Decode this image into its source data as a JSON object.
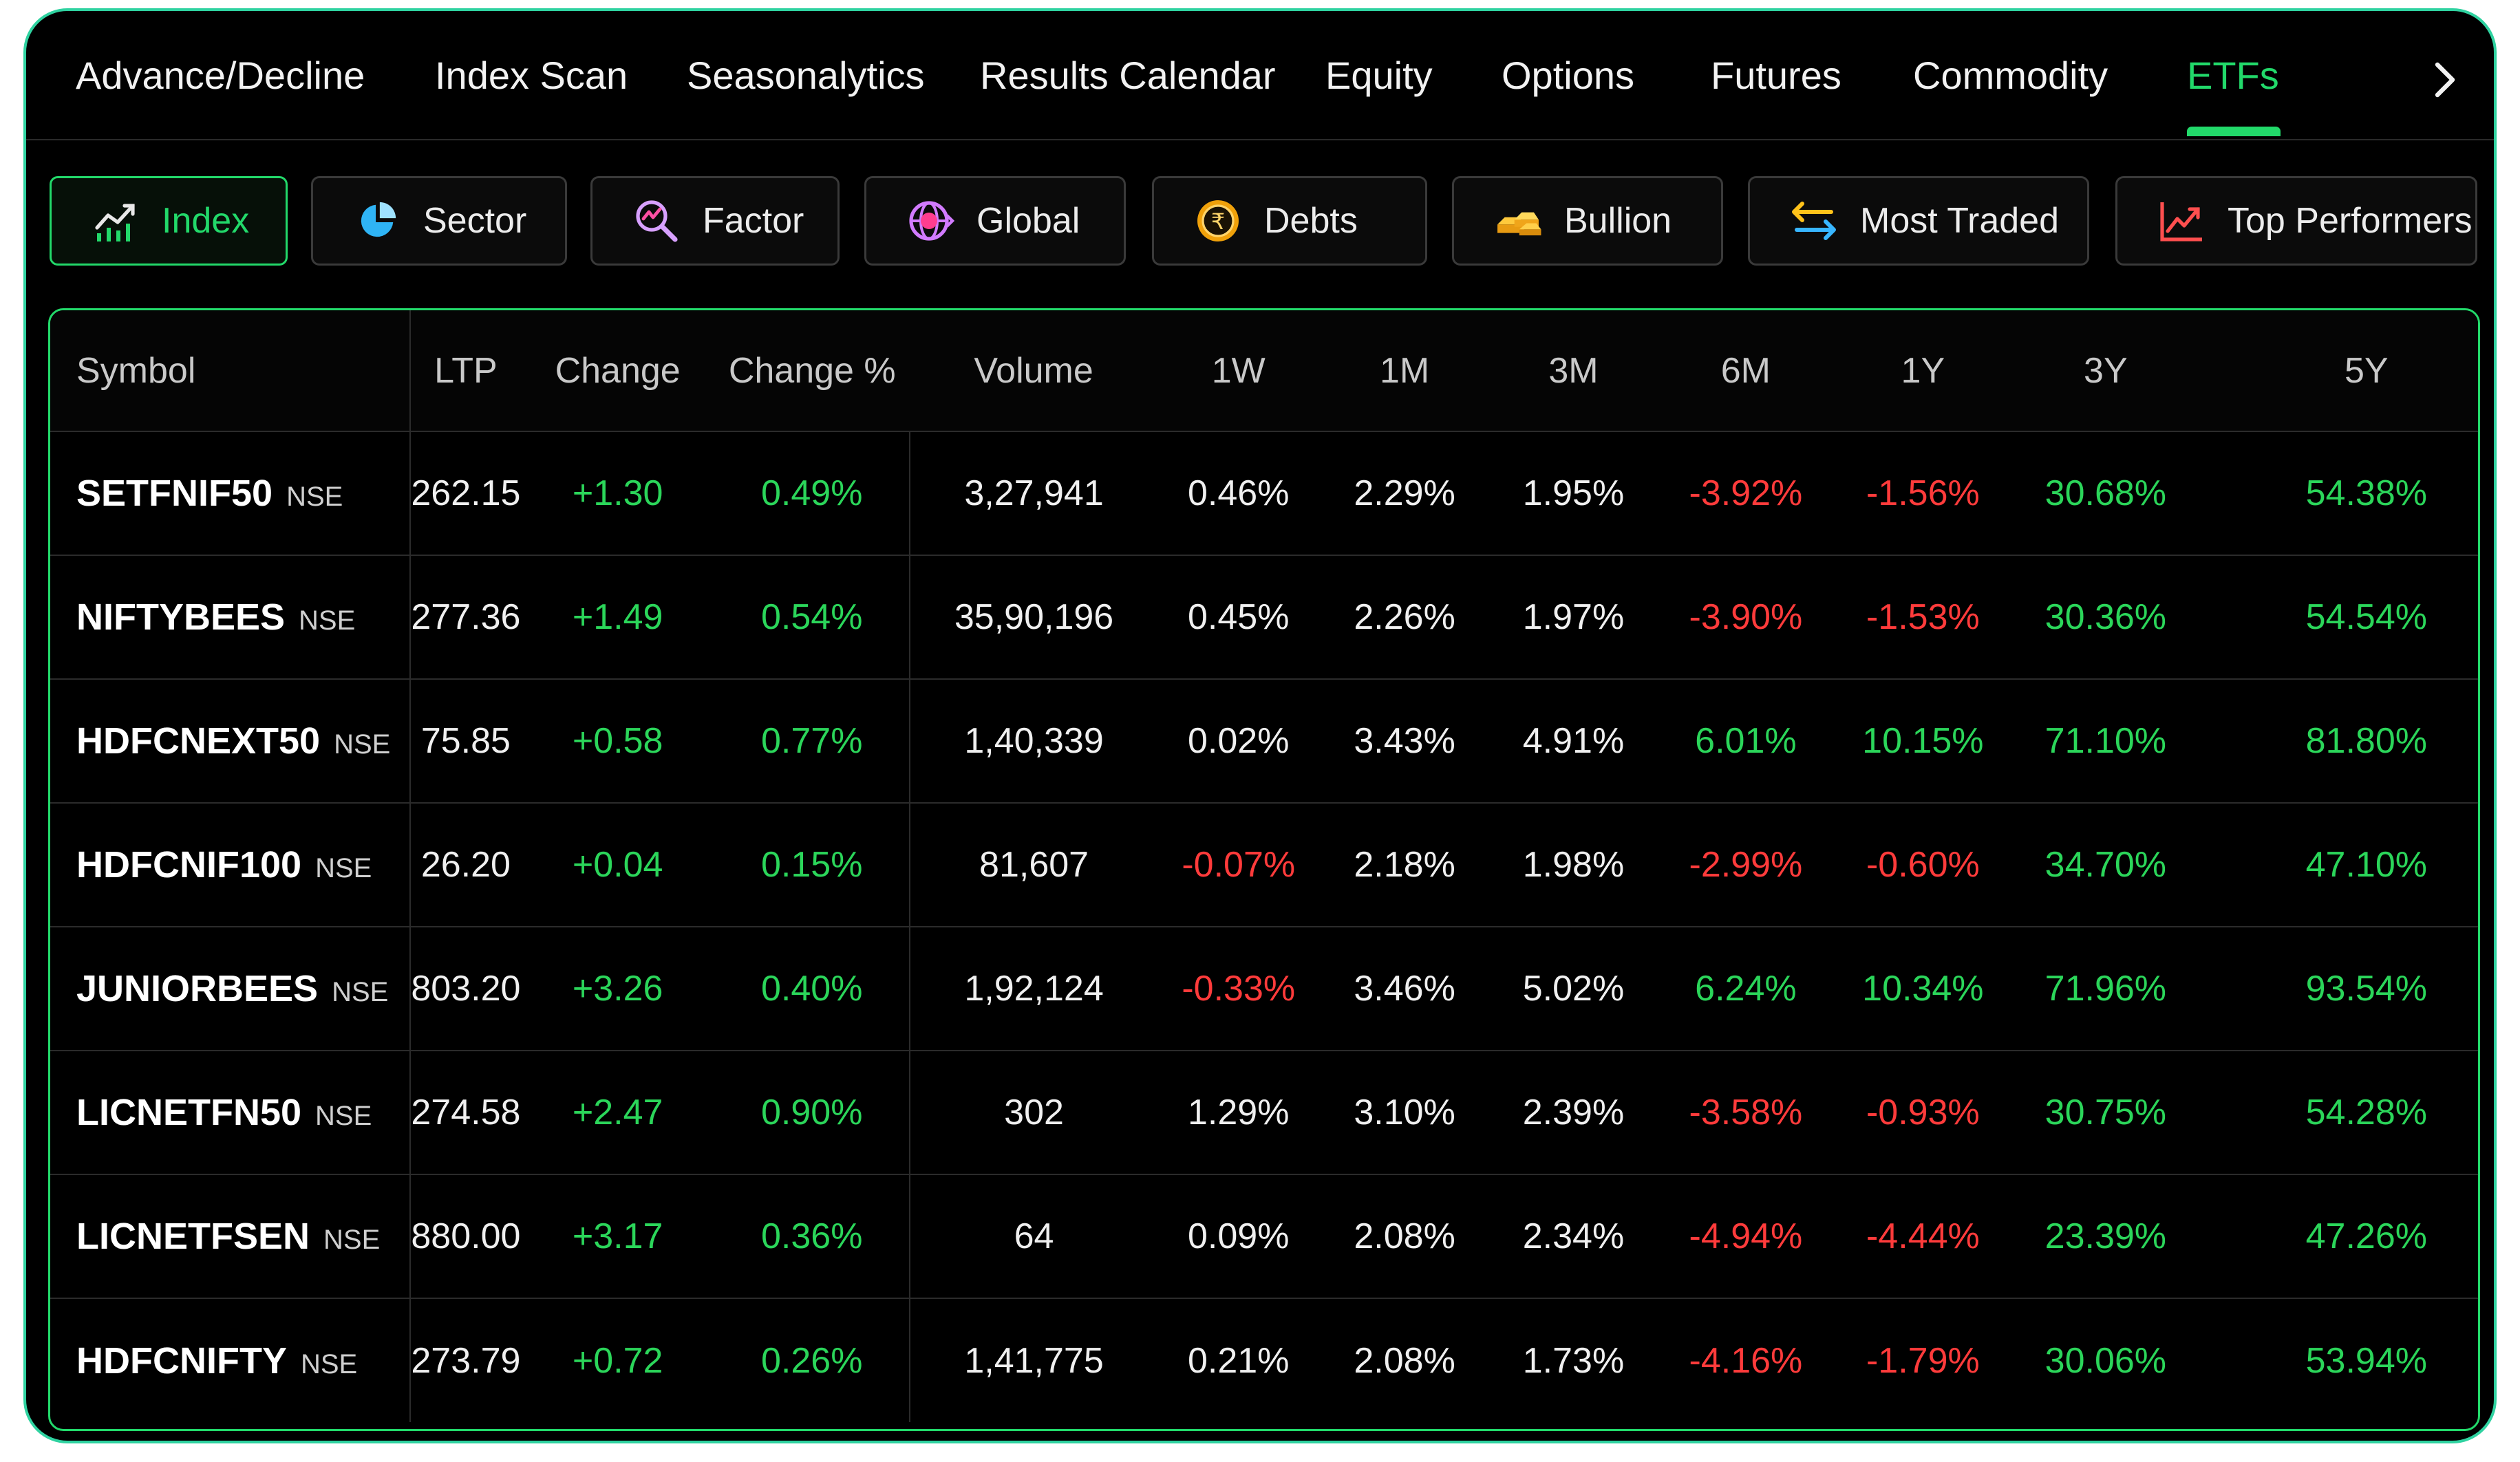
{
  "nav": {
    "tabs": [
      {
        "label": "Advance/Decline"
      },
      {
        "label": "Index Scan"
      },
      {
        "label": "Seasonalytics"
      },
      {
        "label": "Results Calendar"
      },
      {
        "label": "Equity"
      },
      {
        "label": "Options"
      },
      {
        "label": "Futures"
      },
      {
        "label": "Commodity"
      },
      {
        "label": "ETFs",
        "active": true
      }
    ],
    "next_icon": "chevron-right-icon"
  },
  "categories": [
    {
      "label": "Index",
      "icon": "line-chart-icon",
      "active": true
    },
    {
      "label": "Sector",
      "icon": "pie-chart-icon"
    },
    {
      "label": "Factor",
      "icon": "magnifier-chart-icon"
    },
    {
      "label": "Global",
      "icon": "globe-currency-icon"
    },
    {
      "label": "Debts",
      "icon": "rupee-coin-icon"
    },
    {
      "label": "Bullion",
      "icon": "gold-bars-icon"
    },
    {
      "label": "Most Traded",
      "icon": "swap-arrows-icon"
    },
    {
      "label": "Top Performers",
      "icon": "trend-up-icon"
    }
  ],
  "colors": {
    "accent": "#22d96a",
    "positive": "#2bd65a",
    "negative": "#ff3b3b",
    "frame": "#2fd2a0"
  },
  "table": {
    "columns": [
      "Symbol",
      "LTP",
      "Change",
      "Change %",
      "Volume",
      "1W",
      "1M",
      "3M",
      "6M",
      "1Y",
      "3Y",
      "5Y"
    ],
    "rows": [
      {
        "symbol": "SETFNIF50",
        "exchange": "NSE",
        "ltp": "262.15",
        "change": "+1.30",
        "change_pct": "0.49%",
        "volume": "3,27,941",
        "w1": "0.46%",
        "m1": "2.29%",
        "m3": "1.95%",
        "m6": "-3.92%",
        "y1": "-1.56%",
        "y3": "30.68%",
        "y5": "54.38%"
      },
      {
        "symbol": "NIFTYBEES",
        "exchange": "NSE",
        "ltp": "277.36",
        "change": "+1.49",
        "change_pct": "0.54%",
        "volume": "35,90,196",
        "w1": "0.45%",
        "m1": "2.26%",
        "m3": "1.97%",
        "m6": "-3.90%",
        "y1": "-1.53%",
        "y3": "30.36%",
        "y5": "54.54%"
      },
      {
        "symbol": "HDFCNEXT50",
        "exchange": "NSE",
        "ltp": "75.85",
        "change": "+0.58",
        "change_pct": "0.77%",
        "volume": "1,40,339",
        "w1": "0.02%",
        "m1": "3.43%",
        "m3": "4.91%",
        "m6": "6.01%",
        "y1": "10.15%",
        "y3": "71.10%",
        "y5": "81.80%"
      },
      {
        "symbol": "HDFCNIF100",
        "exchange": "NSE",
        "ltp": "26.20",
        "change": "+0.04",
        "change_pct": "0.15%",
        "volume": "81,607",
        "w1": "-0.07%",
        "m1": "2.18%",
        "m3": "1.98%",
        "m6": "-2.99%",
        "y1": "-0.60%",
        "y3": "34.70%",
        "y5": "47.10%"
      },
      {
        "symbol": "JUNIORBEES",
        "exchange": "NSE",
        "ltp": "803.20",
        "change": "+3.26",
        "change_pct": "0.40%",
        "volume": "1,92,124",
        "w1": "-0.33%",
        "m1": "3.46%",
        "m3": "5.02%",
        "m6": "6.24%",
        "y1": "10.34%",
        "y3": "71.96%",
        "y5": "93.54%"
      },
      {
        "symbol": "LICNETFN50",
        "exchange": "NSE",
        "ltp": "274.58",
        "change": "+2.47",
        "change_pct": "0.90%",
        "volume": "302",
        "w1": "1.29%",
        "m1": "3.10%",
        "m3": "2.39%",
        "m6": "-3.58%",
        "y1": "-0.93%",
        "y3": "30.75%",
        "y5": "54.28%"
      },
      {
        "symbol": "LICNETFSEN",
        "exchange": "NSE",
        "ltp": "880.00",
        "change": "+3.17",
        "change_pct": "0.36%",
        "volume": "64",
        "w1": "0.09%",
        "m1": "2.08%",
        "m3": "2.34%",
        "m6": "-4.94%",
        "y1": "-4.44%",
        "y3": "23.39%",
        "y5": "47.26%"
      },
      {
        "symbol": "HDFCNIFTY",
        "exchange": "NSE",
        "ltp": "273.79",
        "change": "+0.72",
        "change_pct": "0.26%",
        "volume": "1,41,775",
        "w1": "0.21%",
        "m1": "2.08%",
        "m3": "1.73%",
        "m6": "-4.16%",
        "y1": "-1.79%",
        "y3": "30.06%",
        "y5": "53.94%"
      }
    ]
  }
}
